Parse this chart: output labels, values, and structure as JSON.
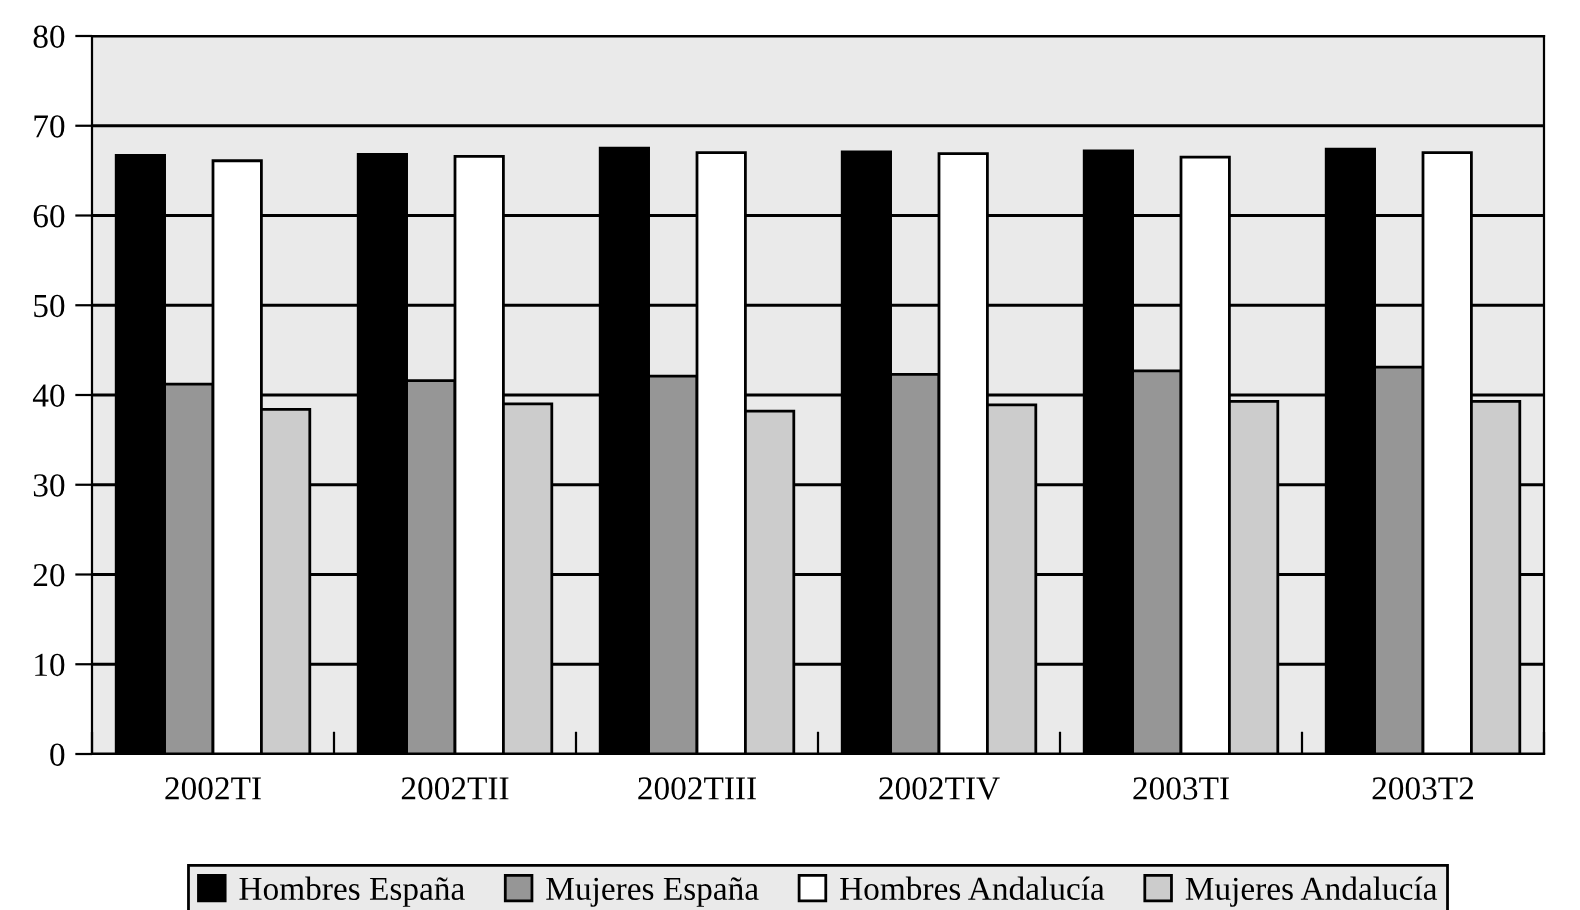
{
  "chart_data": {
    "type": "bar",
    "categories": [
      "2002TI",
      "2002TII",
      "2002TIII",
      "2002TIV",
      "2003TI",
      "2003T2"
    ],
    "series": [
      {
        "name": "Hombres España",
        "color": "#000000",
        "values": [
          66.7,
          66.8,
          67.5,
          67.1,
          67.2,
          67.4
        ]
      },
      {
        "name": "Mujeres España",
        "color": "#969696",
        "values": [
          41.2,
          41.6,
          42.1,
          42.3,
          42.7,
          43.1
        ]
      },
      {
        "name": "Hombres Andalucía",
        "color": "#ffffff",
        "values": [
          66.1,
          66.6,
          67.0,
          66.9,
          66.5,
          67.0
        ]
      },
      {
        "name": "Mujeres Andalucía",
        "color": "#cccccc",
        "values": [
          38.4,
          39.0,
          38.2,
          38.9,
          39.3,
          39.3
        ]
      }
    ],
    "ylim": [
      0,
      80
    ],
    "yticks": [
      0,
      10,
      20,
      30,
      40,
      50,
      60,
      70,
      80
    ],
    "grid": "y",
    "legend": "bottom"
  }
}
